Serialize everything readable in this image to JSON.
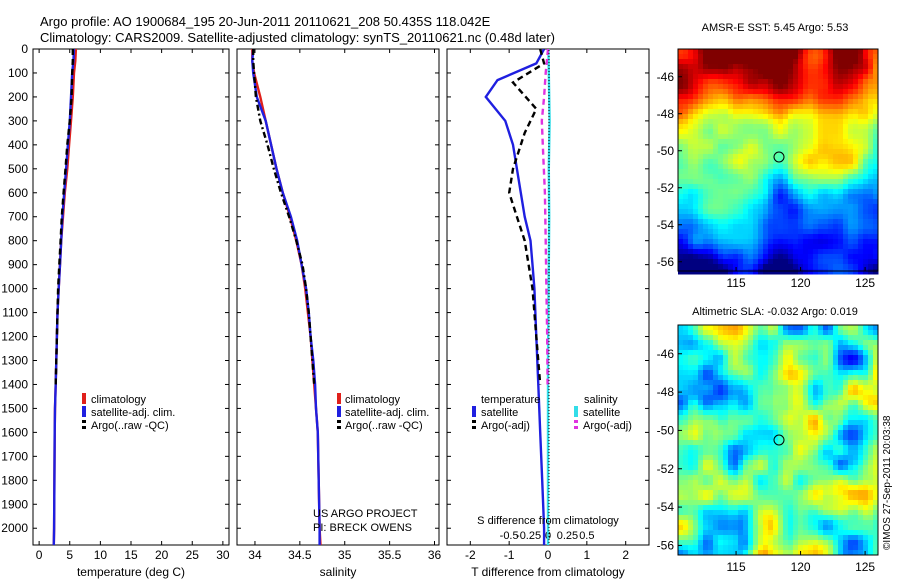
{
  "header": {
    "line1": "Argo profile: AO 1900684_195 20-Jun-2011 20110621_208 50.435S 118.042E",
    "line2": "Climatology: CARS2009. Satellite-adjusted climatology: synTS_20110621.nc (0.48d later)"
  },
  "colors": {
    "climatology": "#e0201b",
    "satellite": "#1f1fe0",
    "argo": "#000000",
    "sal_satellite": "#33dde8",
    "sal_argo": "#e033e0"
  },
  "depth_axis": {
    "ticks": [
      "0",
      "100",
      "200",
      "300",
      "400",
      "500",
      "600",
      "700",
      "800",
      "900",
      "1000",
      "1100",
      "1200",
      "1300",
      "1400",
      "1500",
      "1600",
      "1700",
      "1800",
      "1900",
      "2000"
    ],
    "range": [
      0,
      2070
    ]
  },
  "panels": {
    "temperature": {
      "xlabel": "temperature (deg C)",
      "xlim": [
        -1,
        31
      ],
      "xticks": [
        "0",
        "5",
        "10",
        "15",
        "20",
        "25",
        "30"
      ],
      "legend": [
        "climatology",
        "satellite-adj. clim.",
        "Argo(..raw -QC)"
      ]
    },
    "salinity": {
      "xlabel": "salinity",
      "xlim": [
        33.8,
        36.05
      ],
      "xticks": [
        "34",
        "34.5",
        "35",
        "35.5",
        "36"
      ],
      "legend": [
        "climatology",
        "satellite-adj. clim.",
        "Argo(..raw -QC)"
      ],
      "note1": "US ARGO PROJECT",
      "note2": "PI: BRECK OWENS"
    },
    "difference": {
      "xlabel": "T difference from climatology",
      "xlim": [
        -2.6,
        2.6
      ],
      "xticks": [
        "-2",
        "-1",
        "0",
        "1",
        "2"
      ],
      "s_label": "S difference from climatology",
      "s_ticks": [
        "-0.5",
        "-0.25",
        "0",
        "0.25",
        "0.5"
      ],
      "legend_temp_title": "temperature",
      "legend_sal_title": "salinity",
      "legend_temp": [
        "satellite",
        "Argo(-adj)"
      ],
      "legend_sal": [
        "satellite",
        "Argo(-adj)"
      ]
    }
  },
  "maps": {
    "sst": {
      "title": "AMSR-E SST: 5.45 Argo: 5.53",
      "yticks": [
        "-46",
        "-48",
        "-50",
        "-52",
        "-54",
        "-56"
      ],
      "xticks": [
        "115",
        "120",
        "125"
      ],
      "lon_range": [
        110.5,
        126
      ],
      "lat_range": [
        -56.5,
        -44.5
      ]
    },
    "sla": {
      "title": "Altimetric SLA: -0.032 Argo: 0.019",
      "yticks": [
        "-46",
        "-48",
        "-50",
        "-52",
        "-54",
        "-56"
      ],
      "xticks": [
        "115",
        "120",
        "125"
      ],
      "lon_range": [
        110.5,
        126
      ],
      "lat_range": [
        -56.5,
        -44.5
      ]
    },
    "argo_position": {
      "lon": 118.04,
      "lat": -50.435
    },
    "credit": "©IMOS 27-Sep-2011 20:03:38"
  },
  "chart_data": [
    {
      "type": "line",
      "title": "",
      "xlabel": "temperature (deg C)",
      "ylabel": "",
      "xlim": [
        -1,
        31
      ],
      "ylim": [
        0,
        2070
      ],
      "y_reversed": true,
      "series": [
        {
          "name": "climatology",
          "style": "solid-red",
          "x": [
            6.0,
            5.9,
            5.7,
            5.5,
            5.2,
            4.9,
            4.6,
            4.2,
            3.9,
            3.6,
            3.4,
            3.2,
            3.0,
            2.9,
            2.8,
            2.7,
            2.6,
            2.55,
            2.5,
            2.45,
            2.4
          ],
          "y": [
            0,
            50,
            100,
            200,
            300,
            400,
            500,
            600,
            700,
            800,
            900,
            1000,
            1100,
            1200,
            1300,
            1400,
            1500,
            1600,
            1800,
            2000,
            2070
          ]
        },
        {
          "name": "satellite-adj. clim.",
          "style": "solid-blue",
          "x": [
            5.7,
            5.6,
            5.4,
            5.2,
            5.0,
            4.7,
            4.4,
            4.1,
            3.8,
            3.6,
            3.4,
            3.2,
            3.0,
            2.9,
            2.8,
            2.7,
            2.6,
            2.55,
            2.5,
            2.45,
            2.4
          ],
          "y": [
            0,
            50,
            100,
            200,
            300,
            400,
            500,
            600,
            700,
            800,
            900,
            1000,
            1100,
            1200,
            1300,
            1400,
            1500,
            1600,
            1800,
            2000,
            2070
          ]
        },
        {
          "name": "Argo(..raw -QC)",
          "style": "dashed-black",
          "x": [
            5.5,
            5.5,
            5.4,
            5.3,
            5.0,
            4.6,
            4.3,
            4.0,
            3.7,
            3.5,
            3.3,
            3.1,
            3.0,
            2.9,
            2.8,
            2.7
          ],
          "y": [
            0,
            50,
            100,
            200,
            300,
            400,
            500,
            600,
            700,
            800,
            900,
            1000,
            1100,
            1200,
            1300,
            1400
          ]
        }
      ]
    },
    {
      "type": "line",
      "title": "",
      "xlabel": "salinity",
      "ylabel": "",
      "xlim": [
        33.8,
        36.05
      ],
      "ylim": [
        0,
        2070
      ],
      "y_reversed": true,
      "series": [
        {
          "name": "climatology",
          "style": "solid-red",
          "x": [
            33.97,
            33.97,
            33.99,
            34.06,
            34.12,
            34.18,
            34.24,
            34.31,
            34.39,
            34.46,
            34.52,
            34.56,
            34.59,
            34.62,
            34.64,
            34.66,
            34.68,
            34.7,
            34.71,
            34.72,
            34.73
          ],
          "y": [
            0,
            50,
            100,
            200,
            300,
            400,
            500,
            600,
            700,
            800,
            900,
            1000,
            1100,
            1200,
            1300,
            1400,
            1500,
            1600,
            1800,
            2000,
            2070
          ]
        },
        {
          "name": "satellite-adj. clim.",
          "style": "solid-blue",
          "x": [
            33.98,
            33.97,
            33.98,
            34.02,
            34.12,
            34.18,
            34.24,
            34.31,
            34.4,
            34.47,
            34.52,
            34.57,
            34.6,
            34.62,
            34.65,
            34.67,
            34.68,
            34.7,
            34.71,
            34.72,
            34.72
          ],
          "y": [
            0,
            50,
            100,
            200,
            300,
            400,
            500,
            600,
            700,
            800,
            900,
            1000,
            1100,
            1200,
            1300,
            1400,
            1500,
            1600,
            1800,
            2000,
            2070
          ]
        },
        {
          "name": "Argo(..raw -QC)",
          "style": "dashdot-black",
          "x": [
            33.98,
            33.98,
            33.99,
            34.01,
            34.06,
            34.14,
            34.21,
            34.29,
            34.38,
            34.46,
            34.53,
            34.57,
            34.6,
            34.62,
            34.64,
            34.66
          ],
          "y": [
            0,
            50,
            100,
            200,
            300,
            400,
            500,
            600,
            700,
            800,
            900,
            1000,
            1100,
            1200,
            1300,
            1400
          ]
        }
      ]
    },
    {
      "type": "line",
      "title": "",
      "xlabel": "T difference from climatology",
      "ylabel": "",
      "xlim": [
        -2.6,
        2.6
      ],
      "ylim": [
        0,
        2070
      ],
      "y_reversed": true,
      "series": [
        {
          "name": "temperature satellite",
          "style": "solid-blue",
          "x": [
            -0.1,
            -0.3,
            -1.3,
            -1.6,
            -1.1,
            -0.9,
            -0.8,
            -0.7,
            -0.6,
            -0.45,
            -0.4,
            -0.35,
            -0.3,
            -0.25,
            -0.2,
            -0.15,
            -0.1,
            -0.1
          ],
          "y": [
            0,
            60,
            130,
            200,
            300,
            400,
            500,
            600,
            700,
            800,
            900,
            1000,
            1200,
            1400,
            1600,
            1800,
            2000,
            2070
          ]
        },
        {
          "name": "temperature Argo(-adj)",
          "style": "dashed-black",
          "x": [
            -0.2,
            -0.1,
            -0.9,
            -0.3,
            -0.6,
            -0.9,
            -1.0,
            -0.8,
            -0.6,
            -0.4,
            -0.3,
            -0.2
          ],
          "y": [
            0,
            60,
            140,
            250,
            350,
            500,
            600,
            700,
            800,
            1000,
            1200,
            1400
          ]
        },
        {
          "name": "salinity satellite",
          "style": "solid-cyan",
          "x": [
            0.005,
            0.01,
            0.02,
            0.01,
            0.015,
            0.01,
            0.005,
            0.0,
            0.0,
            0.0,
            0.0
          ],
          "y": [
            0,
            100,
            300,
            500,
            700,
            900,
            1100,
            1300,
            1500,
            1800,
            2070
          ]
        },
        {
          "name": "salinity Argo(-adj)",
          "style": "dashed-magenta",
          "x": [
            0.0,
            -0.03,
            -0.05,
            -0.08,
            -0.06,
            -0.04,
            -0.03,
            -0.02,
            -0.01,
            -0.005
          ],
          "y": [
            0,
            100,
            200,
            300,
            450,
            600,
            800,
            1000,
            1200,
            1400
          ]
        }
      ]
    }
  ]
}
